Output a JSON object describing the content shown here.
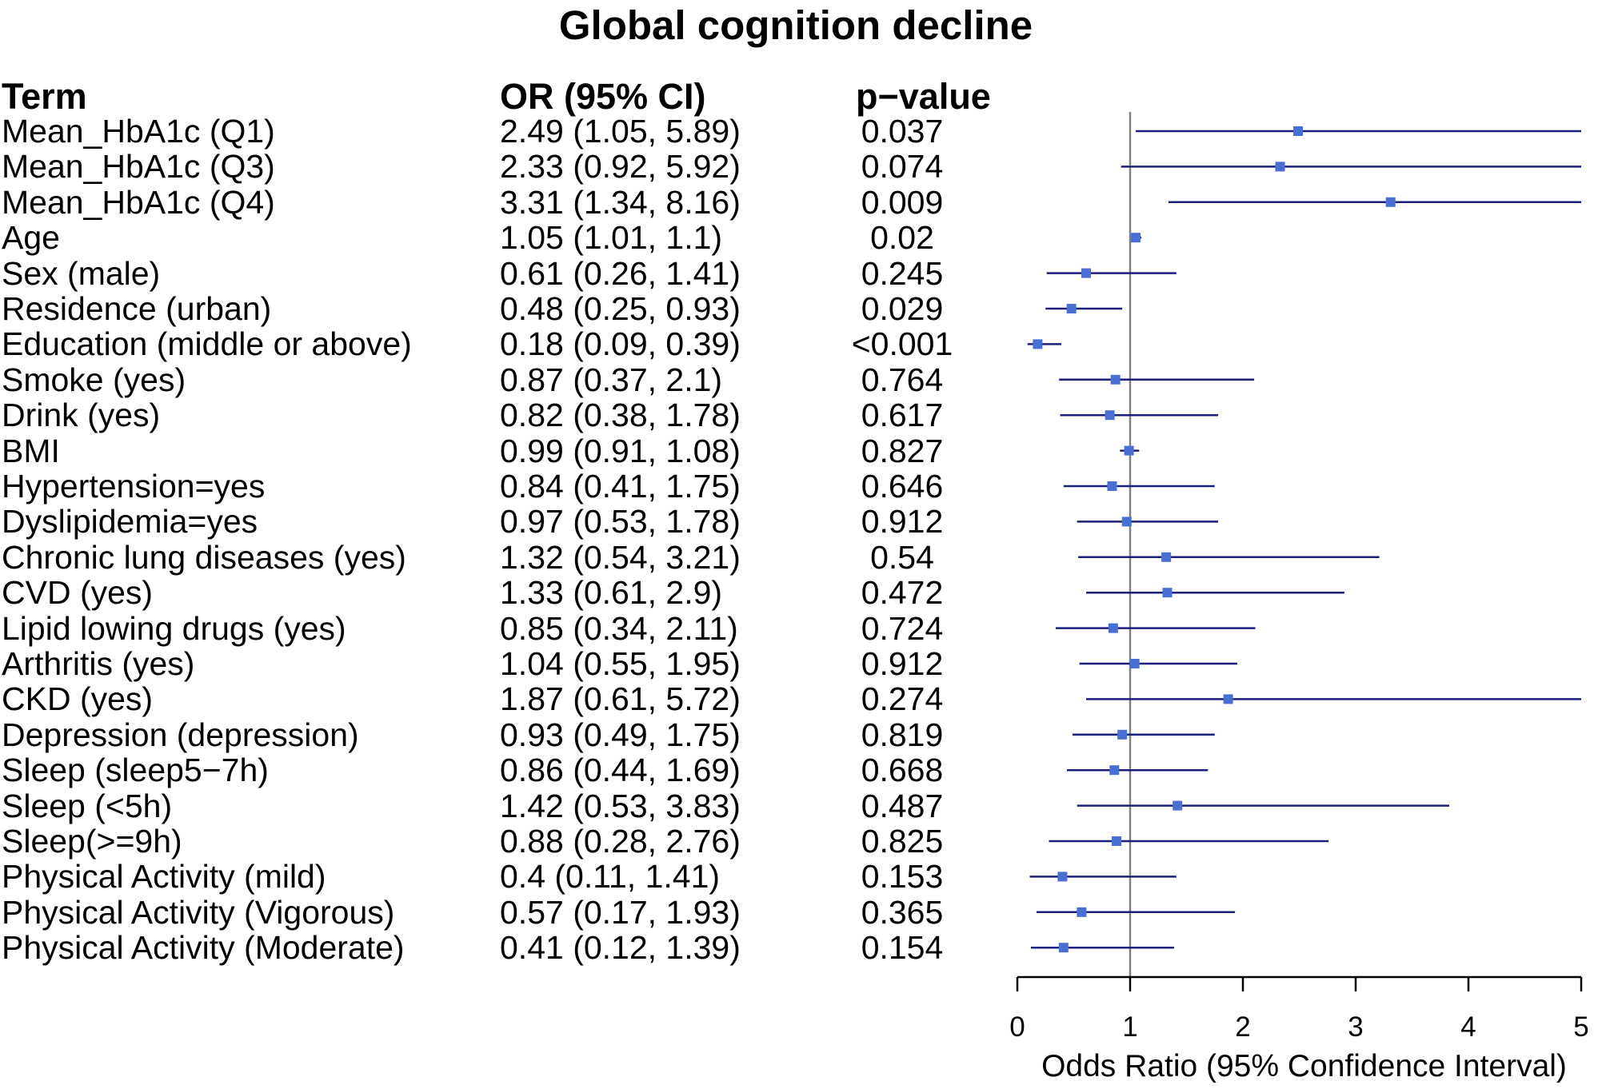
{
  "chart_data": {
    "type": "forest",
    "title": "Global cognition decline",
    "headers": {
      "term": "Term",
      "or": "OR (95% CI)",
      "p": "p−value"
    },
    "xlabel": "Odds Ratio (95% Confidence Interval)",
    "xlim": [
      0,
      5
    ],
    "xticks": [
      "0",
      "1",
      "2",
      "3",
      "4",
      "5"
    ],
    "reference_line": 1,
    "colors": {
      "ci_line": "#1a1f7a",
      "point": "#4a6fd4",
      "ref_line": "#808080"
    },
    "rows": [
      {
        "term": "Mean_HbA1c (Q1)",
        "or_text": "2.49 (1.05, 5.89)",
        "p": "0.037",
        "or": 2.49,
        "lo": 1.05,
        "hi": 5.89
      },
      {
        "term": "Mean_HbA1c (Q3)",
        "or_text": "2.33 (0.92, 5.92)",
        "p": "0.074",
        "or": 2.33,
        "lo": 0.92,
        "hi": 5.92
      },
      {
        "term": "Mean_HbA1c (Q4)",
        "or_text": "3.31 (1.34, 8.16)",
        "p": "0.009",
        "or": 3.31,
        "lo": 1.34,
        "hi": 8.16
      },
      {
        "term": "Age",
        "or_text": "1.05 (1.01, 1.1)",
        "p": "0.02",
        "or": 1.05,
        "lo": 1.01,
        "hi": 1.1
      },
      {
        "term": "Sex (male)",
        "or_text": "0.61 (0.26, 1.41)",
        "p": "0.245",
        "or": 0.61,
        "lo": 0.26,
        "hi": 1.41
      },
      {
        "term": "Residence (urban)",
        "or_text": "0.48 (0.25, 0.93)",
        "p": "0.029",
        "or": 0.48,
        "lo": 0.25,
        "hi": 0.93
      },
      {
        "term": "Education (middle or above)",
        "or_text": "0.18 (0.09, 0.39)",
        "p": "<0.001",
        "or": 0.18,
        "lo": 0.09,
        "hi": 0.39
      },
      {
        "term": "Smoke (yes)",
        "or_text": "0.87 (0.37, 2.1)",
        "p": "0.764",
        "or": 0.87,
        "lo": 0.37,
        "hi": 2.1
      },
      {
        "term": "Drink (yes)",
        "or_text": "0.82 (0.38, 1.78)",
        "p": "0.617",
        "or": 0.82,
        "lo": 0.38,
        "hi": 1.78
      },
      {
        "term": "BMI",
        "or_text": "0.99 (0.91, 1.08)",
        "p": "0.827",
        "or": 0.99,
        "lo": 0.91,
        "hi": 1.08
      },
      {
        "term": "Hypertension=yes",
        "or_text": "0.84 (0.41, 1.75)",
        "p": "0.646",
        "or": 0.84,
        "lo": 0.41,
        "hi": 1.75
      },
      {
        "term": "Dyslipidemia=yes",
        "or_text": "0.97 (0.53, 1.78)",
        "p": "0.912",
        "or": 0.97,
        "lo": 0.53,
        "hi": 1.78
      },
      {
        "term": "Chronic lung diseases (yes)",
        "or_text": "1.32 (0.54, 3.21)",
        "p": "0.54",
        "or": 1.32,
        "lo": 0.54,
        "hi": 3.21
      },
      {
        "term": "CVD (yes)",
        "or_text": "1.33 (0.61, 2.9)",
        "p": "0.472",
        "or": 1.33,
        "lo": 0.61,
        "hi": 2.9
      },
      {
        "term": "Lipid lowing drugs (yes)",
        "or_text": "0.85 (0.34, 2.11)",
        "p": "0.724",
        "or": 0.85,
        "lo": 0.34,
        "hi": 2.11
      },
      {
        "term": "Arthritis (yes)",
        "or_text": "1.04 (0.55, 1.95)",
        "p": "0.912",
        "or": 1.04,
        "lo": 0.55,
        "hi": 1.95
      },
      {
        "term": "CKD (yes)",
        "or_text": "1.87 (0.61, 5.72)",
        "p": "0.274",
        "or": 1.87,
        "lo": 0.61,
        "hi": 5.72
      },
      {
        "term": "Depression (depression)",
        "or_text": "0.93 (0.49, 1.75)",
        "p": "0.819",
        "or": 0.93,
        "lo": 0.49,
        "hi": 1.75
      },
      {
        "term": "Sleep (sleep5−7h)",
        "or_text": "0.86 (0.44, 1.69)",
        "p": "0.668",
        "or": 0.86,
        "lo": 0.44,
        "hi": 1.69
      },
      {
        "term": "Sleep (<5h)",
        "or_text": "1.42 (0.53, 3.83)",
        "p": "0.487",
        "or": 1.42,
        "lo": 0.53,
        "hi": 3.83
      },
      {
        "term": "Sleep(>=9h)",
        "or_text": "0.88 (0.28, 2.76)",
        "p": "0.825",
        "or": 0.88,
        "lo": 0.28,
        "hi": 2.76
      },
      {
        "term": "Physical Activity (mild)",
        "or_text": "0.4 (0.11, 1.41)",
        "p": "0.153",
        "or": 0.4,
        "lo": 0.11,
        "hi": 1.41
      },
      {
        "term": "Physical Activity (Vigorous)",
        "or_text": "0.57 (0.17, 1.93)",
        "p": "0.365",
        "or": 0.57,
        "lo": 0.17,
        "hi": 1.93
      },
      {
        "term": "Physical Activity (Moderate)",
        "or_text": "0.41 (0.12, 1.39)",
        "p": "0.154",
        "or": 0.41,
        "lo": 0.12,
        "hi": 1.39
      }
    ]
  }
}
